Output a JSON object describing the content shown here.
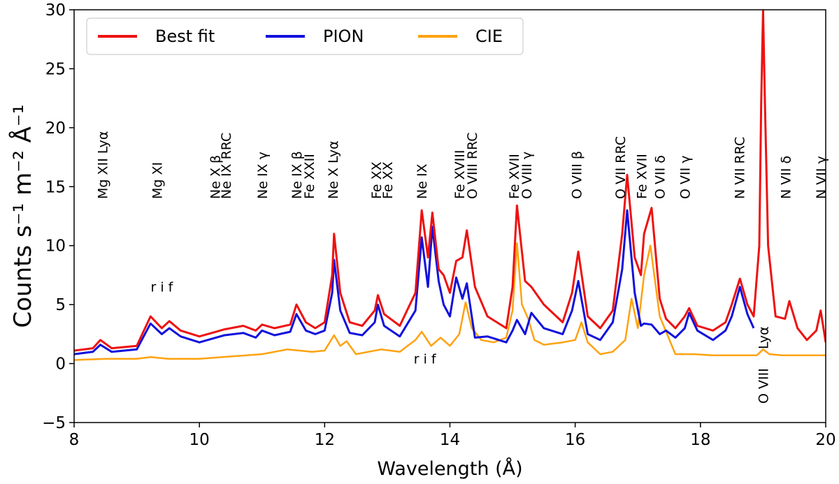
{
  "chart_data": {
    "type": "line",
    "xlabel": "Wavelength (Å)",
    "ylabel": "Counts s⁻¹ m⁻² Å⁻¹",
    "xlim": [
      8,
      20
    ],
    "ylim": [
      -5,
      30
    ],
    "xticks": [
      8,
      10,
      12,
      14,
      16,
      18,
      20
    ],
    "yticks": [
      -5,
      0,
      5,
      10,
      15,
      20,
      25,
      30
    ],
    "grid": false,
    "legend": {
      "placement": "top-left",
      "entries": [
        "Best fit",
        "PION",
        "CIE"
      ]
    },
    "series": [
      {
        "name": "Best fit",
        "color": "#ee1111",
        "x": [
          8.0,
          8.3,
          8.42,
          8.6,
          9.0,
          9.22,
          9.4,
          9.52,
          9.7,
          10.0,
          10.2,
          10.4,
          10.7,
          10.9,
          11.0,
          11.2,
          11.45,
          11.55,
          11.7,
          11.85,
          12.0,
          12.12,
          12.15,
          12.25,
          12.4,
          12.6,
          12.8,
          12.85,
          12.95,
          13.2,
          13.45,
          13.55,
          13.65,
          13.72,
          13.82,
          13.9,
          14.0,
          14.1,
          14.2,
          14.27,
          14.4,
          14.6,
          14.9,
          15.0,
          15.07,
          15.2,
          15.3,
          15.5,
          15.8,
          15.95,
          16.05,
          16.2,
          16.4,
          16.6,
          16.75,
          16.83,
          16.95,
          17.05,
          17.1,
          17.22,
          17.35,
          17.45,
          17.6,
          17.75,
          17.82,
          17.95,
          18.2,
          18.4,
          18.5,
          18.63,
          18.75,
          18.85,
          18.94,
          18.97,
          19.0,
          19.03,
          19.08,
          19.2,
          19.35,
          19.42,
          19.55,
          19.7,
          19.85,
          19.92,
          20.0
        ],
        "y": [
          1.1,
          1.3,
          2.0,
          1.3,
          1.5,
          4.0,
          3.0,
          3.6,
          2.8,
          2.3,
          2.6,
          2.9,
          3.2,
          2.8,
          3.3,
          3.0,
          3.3,
          5.0,
          3.5,
          3.0,
          3.5,
          7.5,
          11.0,
          6.0,
          3.5,
          3.2,
          4.5,
          5.8,
          4.2,
          3.2,
          6.0,
          13.0,
          9.0,
          12.8,
          8.0,
          7.5,
          6.0,
          8.7,
          9.0,
          11.3,
          6.5,
          4.0,
          3.0,
          6.5,
          13.4,
          7.0,
          6.5,
          5.0,
          3.5,
          6.0,
          9.5,
          4.0,
          3.0,
          4.5,
          11.0,
          16.0,
          9.0,
          7.5,
          11.0,
          13.2,
          5.5,
          3.8,
          3.0,
          4.0,
          4.7,
          3.2,
          2.8,
          3.5,
          5.0,
          7.2,
          5.0,
          4.0,
          10.0,
          22.0,
          30.0,
          22.0,
          10.0,
          4.0,
          3.8,
          5.3,
          3.0,
          2.0,
          2.8,
          4.5,
          1.8
        ]
      },
      {
        "name": "PION",
        "color": "#1010dd",
        "x": [
          8.0,
          8.3,
          8.42,
          8.6,
          9.0,
          9.22,
          9.4,
          9.52,
          9.7,
          10.0,
          10.2,
          10.4,
          10.7,
          10.9,
          11.0,
          11.2,
          11.45,
          11.55,
          11.7,
          11.85,
          12.0,
          12.12,
          12.15,
          12.25,
          12.4,
          12.6,
          12.8,
          12.85,
          12.95,
          13.2,
          13.45,
          13.55,
          13.65,
          13.72,
          13.82,
          13.9,
          14.0,
          14.1,
          14.2,
          14.27,
          14.4,
          14.6,
          14.9,
          15.0,
          15.07,
          15.2,
          15.3,
          15.5,
          15.8,
          15.95,
          16.05,
          16.2,
          16.4,
          16.6,
          16.75,
          16.83,
          16.95,
          17.05,
          17.1,
          17.22,
          17.35,
          17.45,
          17.6,
          17.75,
          17.82,
          17.95,
          18.2,
          18.4,
          18.5,
          18.63,
          18.75,
          18.85
        ],
        "y": [
          0.8,
          1.0,
          1.6,
          1.0,
          1.2,
          3.4,
          2.5,
          3.0,
          2.3,
          1.8,
          2.1,
          2.4,
          2.6,
          2.2,
          2.8,
          2.4,
          2.7,
          4.2,
          2.8,
          2.5,
          2.8,
          6.0,
          8.8,
          4.5,
          2.6,
          2.4,
          3.5,
          5.0,
          3.2,
          2.3,
          4.5,
          10.7,
          6.5,
          11.6,
          7.0,
          5.0,
          4.0,
          7.3,
          5.5,
          6.8,
          2.2,
          2.3,
          1.8,
          2.8,
          3.7,
          2.5,
          4.3,
          3.0,
          2.5,
          4.5,
          7.0,
          2.5,
          2.0,
          3.5,
          8.0,
          13.0,
          6.0,
          3.2,
          3.4,
          3.3,
          2.5,
          2.8,
          2.2,
          3.0,
          4.3,
          2.8,
          2.0,
          2.8,
          4.0,
          6.5,
          4.2,
          3.0
        ]
      },
      {
        "name": "CIE",
        "color": "#ffa20f",
        "x": [
          8.0,
          8.5,
          9.0,
          9.22,
          9.5,
          10.0,
          10.5,
          11.0,
          11.4,
          11.8,
          12.0,
          12.15,
          12.25,
          12.35,
          12.5,
          12.9,
          13.2,
          13.45,
          13.55,
          13.7,
          13.85,
          14.0,
          14.15,
          14.25,
          14.35,
          14.5,
          14.7,
          14.9,
          15.0,
          15.07,
          15.15,
          15.25,
          15.35,
          15.5,
          15.8,
          16.0,
          16.1,
          16.2,
          16.4,
          16.6,
          16.8,
          16.9,
          17.0,
          17.1,
          17.2,
          17.35,
          17.6,
          17.9,
          18.2,
          18.6,
          18.9,
          19.0,
          19.1,
          19.3,
          19.6,
          20.0
        ],
        "y": [
          0.3,
          0.4,
          0.4,
          0.55,
          0.4,
          0.4,
          0.6,
          0.8,
          1.2,
          1.0,
          1.1,
          2.4,
          1.5,
          1.9,
          0.8,
          1.2,
          1.0,
          2.0,
          2.7,
          1.5,
          2.2,
          1.5,
          2.5,
          5.2,
          3.0,
          2.0,
          1.8,
          2.2,
          4.5,
          10.2,
          5.0,
          3.8,
          2.0,
          1.6,
          1.8,
          2.0,
          3.5,
          1.8,
          0.8,
          1.0,
          2.0,
          5.5,
          3.0,
          7.5,
          10.0,
          4.0,
          0.8,
          0.8,
          0.7,
          0.7,
          0.7,
          1.2,
          0.8,
          0.7,
          0.7,
          0.7
        ]
      }
    ],
    "line_annotations": [
      {
        "x": 8.45,
        "label": "Mg XII Lyα"
      },
      {
        "x": 9.32,
        "label": "Mg XI"
      },
      {
        "x": 10.25,
        "label": "Ne X β"
      },
      {
        "x": 10.42,
        "label": "Ne IX RRC"
      },
      {
        "x": 11.0,
        "label": "Ne IX γ"
      },
      {
        "x": 11.55,
        "label": "Ne IX β"
      },
      {
        "x": 11.75,
        "label": "Fe XXII"
      },
      {
        "x": 12.13,
        "label": "Ne X Lyα"
      },
      {
        "x": 12.82,
        "label": "Fe XX"
      },
      {
        "x": 13.0,
        "label": "Fe XX"
      },
      {
        "x": 13.55,
        "label": "Ne IX"
      },
      {
        "x": 14.15,
        "label": "Fe XVIII"
      },
      {
        "x": 14.35,
        "label": "O VIII RRC"
      },
      {
        "x": 15.02,
        "label": "Fe XVII"
      },
      {
        "x": 15.22,
        "label": "O VIII γ"
      },
      {
        "x": 16.02,
        "label": "O VIII β"
      },
      {
        "x": 16.72,
        "label": "O VII RRC"
      },
      {
        "x": 17.06,
        "label": "Fe XVII"
      },
      {
        "x": 17.35,
        "label": "O VII δ"
      },
      {
        "x": 17.75,
        "label": "O VII γ"
      },
      {
        "x": 18.62,
        "label": "N VII RRC"
      },
      {
        "x": 19.36,
        "label": "N VII δ"
      },
      {
        "x": 19.92,
        "label": "N VII γ"
      }
    ],
    "triplet_annotations": [
      {
        "x": 9.4,
        "y": 6.1,
        "label": "r i f"
      },
      {
        "x": 13.6,
        "y": 0.0,
        "label": "r i f"
      }
    ],
    "ovii_annotation": {
      "x": 19.0,
      "label_top": "Lyα",
      "label_bottom": "O VIII"
    }
  }
}
